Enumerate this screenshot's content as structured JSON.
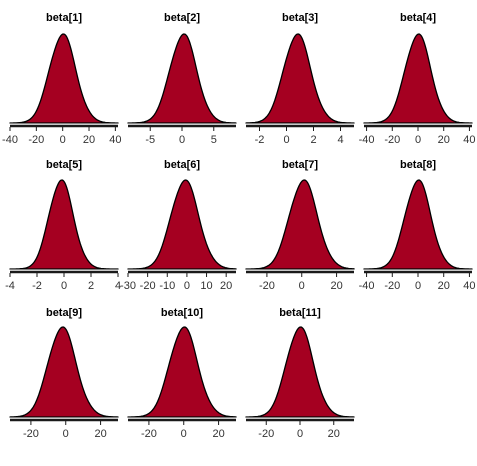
{
  "colors": {
    "fill": "#a50021",
    "outline": "#000000",
    "axis": "#1a1a1a",
    "background": "#ffffff"
  },
  "chart_data": [
    {
      "type": "area",
      "title": "beta[1]",
      "xlim": [
        -40,
        42
      ],
      "ticks": [
        -40,
        -20,
        0,
        20,
        40
      ],
      "tick_labels": [
        "-40",
        "-20",
        "0",
        "20",
        "40"
      ],
      "mean": 0,
      "sd": 10,
      "skew": 0.04
    },
    {
      "type": "area",
      "title": "beta[2]",
      "xlim": [
        -8.5,
        8.5
      ],
      "ticks": [
        -5,
        0,
        5
      ],
      "tick_labels": [
        "-5",
        "0",
        "5"
      ],
      "mean": 0.2,
      "sd": 2.1,
      "skew": 0.02
    },
    {
      "type": "area",
      "title": "beta[3]",
      "xlim": [
        -3,
        5
      ],
      "ticks": [
        -2,
        0,
        2,
        4
      ],
      "tick_labels": [
        "-2",
        "0",
        "2",
        "4"
      ],
      "mean": 0.8,
      "sd": 1.0,
      "skew": 0.05
    },
    {
      "type": "area",
      "title": "beta[4]",
      "xlim": [
        -42,
        42
      ],
      "ticks": [
        -40,
        -20,
        0,
        20,
        40
      ],
      "tick_labels": [
        "-40",
        "-20",
        "0",
        "20",
        "40"
      ],
      "mean": 0,
      "sd": 10,
      "skew": 0.03
    },
    {
      "type": "area",
      "title": "beta[5]",
      "xlim": [
        -4,
        4
      ],
      "ticks": [
        -4,
        -2,
        0,
        2,
        4
      ],
      "tick_labels": [
        "-4",
        "-2",
        "0",
        "2",
        "4"
      ],
      "mean": -0.2,
      "sd": 0.9,
      "skew": 0.06
    },
    {
      "type": "area",
      "title": "beta[6]",
      "xlim": [
        -30,
        25
      ],
      "ticks": [
        -30,
        -20,
        -10,
        0,
        10,
        20
      ],
      "tick_labels": [
        "-30",
        "-20",
        "-10",
        "0",
        "10",
        "20"
      ],
      "mean": -1,
      "sd": 7,
      "skew": 0.05
    },
    {
      "type": "area",
      "title": "beta[7]",
      "xlim": [
        -32,
        30
      ],
      "ticks": [
        -20,
        0,
        20
      ],
      "tick_labels": [
        "-20",
        "0",
        "20"
      ],
      "mean": 1,
      "sd": 8,
      "skew": 0.04
    },
    {
      "type": "area",
      "title": "beta[8]",
      "xlim": [
        -42,
        42
      ],
      "ticks": [
        -40,
        -20,
        0,
        20,
        40
      ],
      "tick_labels": [
        "-40",
        "-20",
        "0",
        "20",
        "40"
      ],
      "mean": 0,
      "sd": 10,
      "skew": 0.03
    },
    {
      "type": "area",
      "title": "beta[9]",
      "xlim": [
        -32,
        30
      ],
      "ticks": [
        -20,
        0,
        20
      ],
      "tick_labels": [
        "-20",
        "0",
        "20"
      ],
      "mean": -2,
      "sd": 8,
      "skew": 0.06
    },
    {
      "type": "area",
      "title": "beta[10]",
      "xlim": [
        -32,
        30
      ],
      "ticks": [
        -20,
        0,
        20
      ],
      "tick_labels": [
        "-20",
        "0",
        "20"
      ],
      "mean": 0,
      "sd": 8,
      "skew": 0.05
    },
    {
      "type": "area",
      "title": "beta[11]",
      "xlim": [
        -32,
        32
      ],
      "ticks": [
        -20,
        0,
        20
      ],
      "tick_labels": [
        "-20",
        "0",
        "20"
      ],
      "mean": 0,
      "sd": 8,
      "skew": 0.05
    }
  ]
}
